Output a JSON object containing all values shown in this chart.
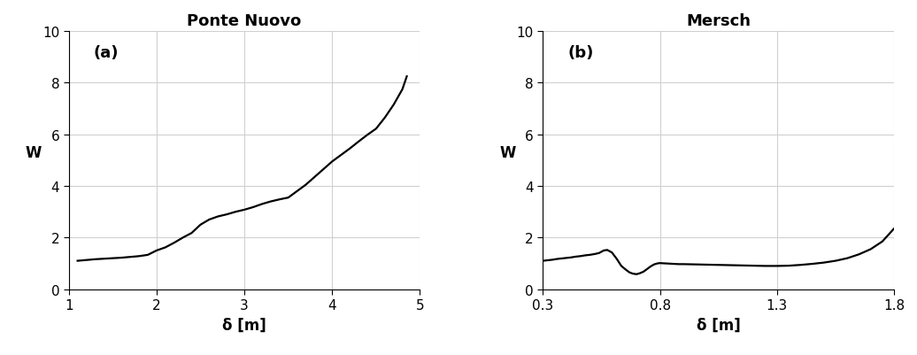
{
  "panel_a": {
    "title": "Ponte Nuovo",
    "xlabel": "δ [m]",
    "ylabel": "W",
    "label": "(a)",
    "xlim": [
      1,
      5
    ],
    "ylim": [
      0,
      10
    ],
    "xticks": [
      1,
      2,
      3,
      4,
      5
    ],
    "yticks": [
      0,
      2,
      4,
      6,
      8,
      10
    ],
    "x": [
      1.1,
      1.2,
      1.3,
      1.4,
      1.5,
      1.6,
      1.7,
      1.8,
      1.9,
      2.0,
      2.1,
      2.2,
      2.3,
      2.4,
      2.5,
      2.6,
      2.7,
      2.8,
      2.9,
      3.0,
      3.1,
      3.2,
      3.3,
      3.4,
      3.5,
      3.6,
      3.7,
      3.8,
      3.9,
      4.0,
      4.1,
      4.2,
      4.3,
      4.4,
      4.45,
      4.5,
      4.6,
      4.7,
      4.8,
      4.85
    ],
    "y": [
      1.1,
      1.13,
      1.16,
      1.18,
      1.2,
      1.22,
      1.25,
      1.28,
      1.33,
      1.5,
      1.62,
      1.8,
      2.0,
      2.18,
      2.5,
      2.7,
      2.82,
      2.9,
      3.0,
      3.08,
      3.18,
      3.3,
      3.4,
      3.48,
      3.55,
      3.8,
      4.05,
      4.35,
      4.65,
      4.95,
      5.2,
      5.45,
      5.72,
      5.98,
      6.1,
      6.22,
      6.65,
      7.15,
      7.75,
      8.25
    ]
  },
  "panel_b": {
    "title": "Mersch",
    "xlabel": "δ [m]",
    "ylabel": "W",
    "label": "(b)",
    "xlim": [
      0.3,
      1.8
    ],
    "ylim": [
      0,
      10
    ],
    "xticks": [
      0.3,
      0.8,
      1.3,
      1.8
    ],
    "yticks": [
      0,
      2,
      4,
      6,
      8,
      10
    ],
    "x": [
      0.3,
      0.32,
      0.34,
      0.36,
      0.38,
      0.4,
      0.42,
      0.44,
      0.46,
      0.48,
      0.5,
      0.52,
      0.54,
      0.56,
      0.575,
      0.595,
      0.615,
      0.635,
      0.655,
      0.67,
      0.685,
      0.7,
      0.715,
      0.73,
      0.745,
      0.76,
      0.775,
      0.79,
      0.8,
      0.82,
      0.84,
      0.86,
      0.88,
      0.9,
      0.95,
      1.0,
      1.05,
      1.1,
      1.15,
      1.2,
      1.25,
      1.3,
      1.35,
      1.4,
      1.45,
      1.5,
      1.55,
      1.6,
      1.65,
      1.7,
      1.75,
      1.8
    ],
    "y": [
      1.1,
      1.12,
      1.14,
      1.17,
      1.19,
      1.21,
      1.23,
      1.26,
      1.28,
      1.31,
      1.33,
      1.36,
      1.4,
      1.5,
      1.52,
      1.42,
      1.18,
      0.9,
      0.75,
      0.65,
      0.6,
      0.58,
      0.62,
      0.68,
      0.78,
      0.88,
      0.96,
      1.0,
      1.01,
      1.0,
      0.99,
      0.98,
      0.97,
      0.97,
      0.96,
      0.95,
      0.94,
      0.93,
      0.92,
      0.91,
      0.9,
      0.9,
      0.91,
      0.94,
      0.98,
      1.03,
      1.1,
      1.2,
      1.35,
      1.55,
      1.85,
      2.35
    ]
  },
  "line_color": "#000000",
  "line_width": 1.6,
  "background_color": "#ffffff",
  "grid_color": "#d0d0d0",
  "title_fontsize": 13,
  "label_fontsize": 12,
  "tick_fontsize": 11,
  "annotation_fontsize": 13
}
